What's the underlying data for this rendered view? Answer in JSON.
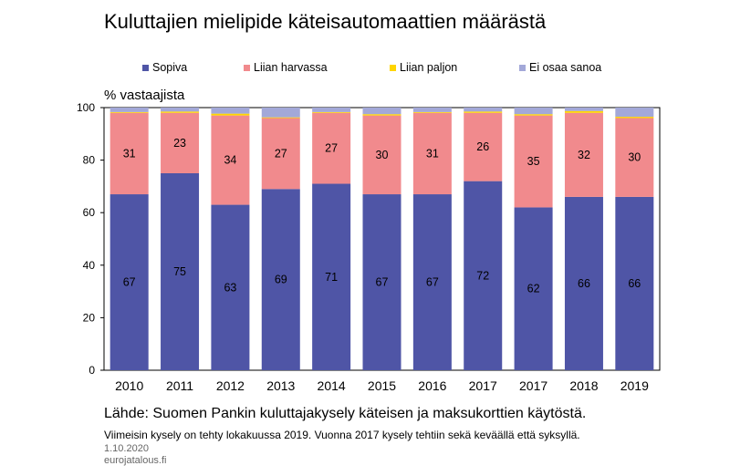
{
  "title": "Kuluttajien mielipide käteisautomaattien määrästä",
  "ylabel": "% vastaajista",
  "source": "Lähde: Suomen Pankin kuluttajakysely käteisen ja maksukorttien käytöstä.",
  "note": "Viimeisin kysely on tehty lokakuussa 2019. Vuonna 2017 kysely tehtiin sekä keväällä että syksyllä.",
  "date": "1.10.2020",
  "site": "eurojatalous.fi",
  "colors": {
    "sopiva": "#4f55a6",
    "liian_harvassa": "#f18a8d",
    "liian_paljon": "#ffd500",
    "ei_osaa_sanoa": "#a3a8d8"
  },
  "chart_data": {
    "type": "bar",
    "stacked": true,
    "categories": [
      "2010",
      "2011",
      "2012",
      "2013",
      "2014",
      "2015",
      "2016",
      "2017",
      "2017",
      "2018",
      "2019"
    ],
    "ylim": [
      0,
      100
    ],
    "yticks": [
      0,
      20,
      40,
      60,
      80,
      100
    ],
    "legend_position": "top",
    "grid": false,
    "series": [
      {
        "name": "Sopiva",
        "values": [
          67,
          75,
          63,
          69,
          71,
          67,
          67,
          72,
          62,
          66,
          66
        ],
        "labels": [
          "67",
          "75",
          "63",
          "69",
          "71",
          "67",
          "67",
          "72",
          "62",
          "66",
          "66"
        ]
      },
      {
        "name": "Liian harvassa",
        "values": [
          31,
          23,
          34,
          27,
          27,
          30,
          31,
          26,
          35,
          32,
          30
        ],
        "labels": [
          "31",
          "23",
          "34",
          "27",
          "27",
          "30",
          "31",
          "26",
          "35",
          "32",
          "30"
        ]
      },
      {
        "name": "Liian paljon",
        "values": [
          0.3,
          0.5,
          0.7,
          0.3,
          0.3,
          0.5,
          0.3,
          0.5,
          0.5,
          0.7,
          0.5
        ]
      },
      {
        "name": "Ei osaa sanoa",
        "values": [
          1.7,
          1.5,
          2.3,
          3.7,
          1.7,
          2.5,
          1.7,
          1.5,
          2.5,
          1.3,
          3.5
        ]
      }
    ]
  }
}
